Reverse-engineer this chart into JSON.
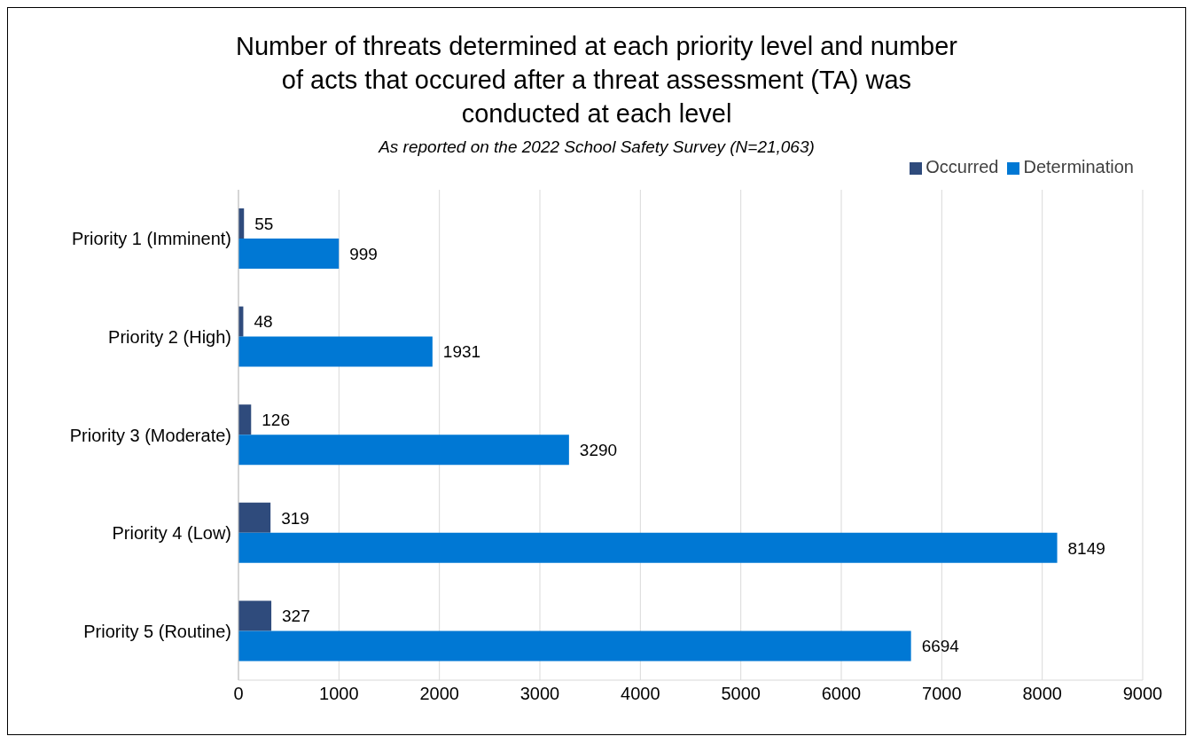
{
  "chart_data": {
    "type": "bar",
    "orientation": "horizontal",
    "title": "Number of threats determined at each priority level and number of acts that occured after a threat assessment (TA) was conducted at each level",
    "subtitle": "As reported on the 2022 School Safety Survey (N=21,063)",
    "categories": [
      "Priority 1 (Imminent)",
      "Priority 2 (High)",
      "Priority 3 (Moderate)",
      "Priority 4 (Low)",
      "Priority 5 (Routine)"
    ],
    "series": [
      {
        "name": "Occurred",
        "color": "#2f4b7c",
        "values": [
          55,
          48,
          126,
          319,
          327
        ]
      },
      {
        "name": "Determination",
        "color": "#0078d4",
        "values": [
          999,
          1931,
          3290,
          8149,
          6694
        ]
      }
    ],
    "xlim": [
      0,
      9000
    ],
    "xticks": [
      0,
      1000,
      2000,
      3000,
      4000,
      5000,
      6000,
      7000,
      8000,
      9000
    ],
    "grid": "x",
    "legend": "top right",
    "data_labels": true
  }
}
